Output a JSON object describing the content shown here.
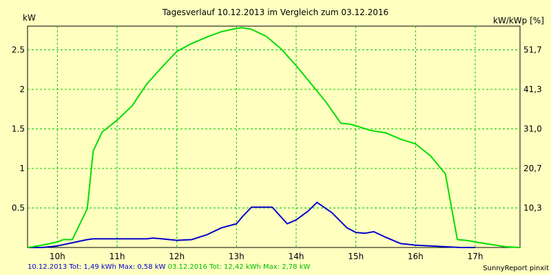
{
  "chart_data": {
    "type": "line",
    "title": "Tagesverlauf 10.12.2013 im Vergleich zum 03.12.2016",
    "ylabel_left": "kW",
    "ylabel_right": "kW/kWp [%]",
    "xlim": [
      9.5,
      17.75
    ],
    "ylim": [
      0,
      2.8
    ],
    "x_ticks": [
      10,
      11,
      12,
      13,
      14,
      15,
      16,
      17
    ],
    "x_tick_labels": [
      "10h",
      "11h",
      "12h",
      "13h",
      "14h",
      "15h",
      "16h",
      "17h"
    ],
    "y_ticks": [
      0.5,
      1,
      1.5,
      2,
      2.5
    ],
    "y_tick_labels": [
      "0.5",
      "1",
      "1.5",
      "2",
      "2.5"
    ],
    "y2_ticks": [
      0.5,
      1,
      1.5,
      2,
      2.5
    ],
    "y2_tick_labels": [
      "10,3",
      "20,7",
      "31,0",
      "41,3",
      "51,7"
    ],
    "grid": true,
    "series": [
      {
        "name": "10.12.2013",
        "color": "#0000cc",
        "x": [
          9.5,
          9.75,
          10.0,
          10.25,
          10.5,
          10.6,
          10.75,
          11.0,
          11.25,
          11.5,
          11.6,
          11.75,
          12.0,
          12.25,
          12.5,
          12.75,
          13.0,
          13.1,
          13.25,
          13.35,
          13.6,
          13.85,
          14.0,
          14.2,
          14.35,
          14.6,
          14.85,
          15.0,
          15.15,
          15.3,
          15.5,
          15.75,
          16.0,
          16.25,
          16.5,
          16.75,
          17.0
        ],
        "values": [
          0,
          0,
          0.02,
          0.06,
          0.1,
          0.11,
          0.11,
          0.11,
          0.11,
          0.11,
          0.12,
          0.11,
          0.09,
          0.1,
          0.16,
          0.25,
          0.3,
          0.39,
          0.51,
          0.51,
          0.51,
          0.3,
          0.35,
          0.46,
          0.57,
          0.44,
          0.25,
          0.19,
          0.18,
          0.2,
          0.13,
          0.05,
          0.03,
          0.02,
          0.01,
          0,
          0
        ]
      },
      {
        "name": "03.12.2016",
        "color": "#00dd00",
        "x": [
          9.5,
          9.75,
          10.0,
          10.1,
          10.25,
          10.5,
          10.6,
          10.75,
          11.0,
          11.25,
          11.5,
          11.75,
          12.0,
          12.25,
          12.5,
          12.75,
          13.0,
          13.1,
          13.25,
          13.5,
          13.75,
          14.0,
          14.25,
          14.5,
          14.75,
          14.9,
          15.0,
          15.25,
          15.5,
          15.75,
          16.0,
          16.25,
          16.5,
          16.7,
          16.85,
          17.0,
          17.25,
          17.5,
          17.75
        ],
        "values": [
          0,
          0.03,
          0.07,
          0.1,
          0.1,
          0.49,
          1.22,
          1.46,
          1.61,
          1.79,
          2.07,
          2.28,
          2.48,
          2.58,
          2.66,
          2.73,
          2.77,
          2.78,
          2.76,
          2.67,
          2.51,
          2.3,
          2.07,
          1.84,
          1.57,
          1.56,
          1.54,
          1.48,
          1.45,
          1.37,
          1.31,
          1.16,
          0.93,
          0.1,
          0.09,
          0.07,
          0.04,
          0.01,
          0
        ]
      }
    ]
  },
  "footer": {
    "blue_text": "10.12.2013 Tot: 1,49 kWh Max: 0,58 kW",
    "green_text": "03.12.2016 Tot: 12,42 kWh Max: 2,78 kW"
  },
  "credit": "SunnyReport pinxit"
}
